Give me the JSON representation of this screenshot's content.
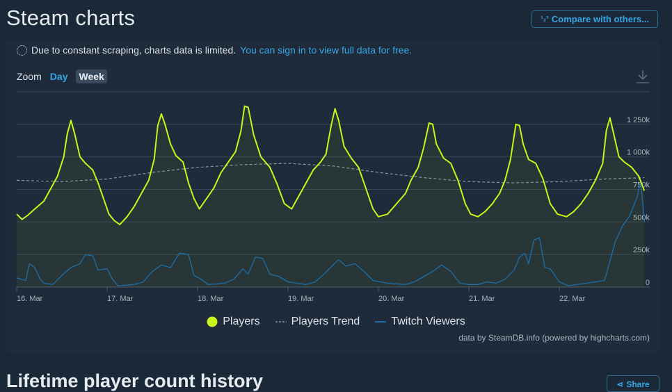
{
  "header": {
    "title": "Steam charts",
    "compare_label": "Compare with others..."
  },
  "notice": {
    "text": "Due to constant scraping, charts data is limited.",
    "link": "You can sign in to view full data for free."
  },
  "zoom": {
    "label": "Zoom",
    "options": [
      "Day",
      "Week"
    ],
    "selected": "Week"
  },
  "footer": {
    "credits": "data by SteamDB.info (powered by highcharts.com)",
    "next_title": "Lifetime player count history",
    "share_label": "Share"
  },
  "colors": {
    "players": "#c8f51c",
    "trend": "#8a96a3",
    "twitch": "#1c6fa8",
    "accent": "#35a6e5"
  },
  "chart_data": {
    "type": "line",
    "title": "",
    "x_tick_labels": [
      "16. Mar",
      "17. Mar",
      "18. Mar",
      "19. Mar",
      "20. Mar",
      "21. Mar",
      "22. Mar"
    ],
    "x_range_days": [
      0,
      7.0
    ],
    "y_tick_labels": [
      "0",
      "250k",
      "500k",
      "750k",
      "1 000k",
      "1 250k"
    ],
    "y_ticks": [
      0,
      250000,
      500000,
      750000,
      1000000,
      1250000
    ],
    "ylim": [
      0,
      1500000
    ],
    "grid": true,
    "legend_position": "bottom-center",
    "series": [
      {
        "name": "Players",
        "values": [
          [
            0,
            560000
          ],
          [
            0.06,
            520000
          ],
          [
            0.12,
            550000
          ],
          [
            0.2,
            600000
          ],
          [
            0.3,
            660000
          ],
          [
            0.38,
            760000
          ],
          [
            0.45,
            850000
          ],
          [
            0.52,
            1000000
          ],
          [
            0.56,
            1180000
          ],
          [
            0.6,
            1280000
          ],
          [
            0.64,
            1180000
          ],
          [
            0.7,
            1000000
          ],
          [
            0.76,
            950000
          ],
          [
            0.84,
            900000
          ],
          [
            0.9,
            800000
          ],
          [
            0.96,
            680000
          ],
          [
            1.02,
            560000
          ],
          [
            1.08,
            510000
          ],
          [
            1.14,
            480000
          ],
          [
            1.22,
            540000
          ],
          [
            1.3,
            620000
          ],
          [
            1.38,
            720000
          ],
          [
            1.46,
            820000
          ],
          [
            1.52,
            980000
          ],
          [
            1.56,
            1240000
          ],
          [
            1.6,
            1330000
          ],
          [
            1.64,
            1250000
          ],
          [
            1.7,
            1100000
          ],
          [
            1.76,
            1010000
          ],
          [
            1.84,
            960000
          ],
          [
            1.9,
            800000
          ],
          [
            1.96,
            680000
          ],
          [
            2.02,
            600000
          ],
          [
            2.1,
            680000
          ],
          [
            2.18,
            760000
          ],
          [
            2.26,
            880000
          ],
          [
            2.34,
            960000
          ],
          [
            2.42,
            1040000
          ],
          [
            2.48,
            1200000
          ],
          [
            2.52,
            1390000
          ],
          [
            2.56,
            1380000
          ],
          [
            2.62,
            1170000
          ],
          [
            2.7,
            1000000
          ],
          [
            2.8,
            920000
          ],
          [
            2.88,
            790000
          ],
          [
            2.96,
            640000
          ],
          [
            3.04,
            600000
          ],
          [
            3.12,
            700000
          ],
          [
            3.2,
            800000
          ],
          [
            3.28,
            900000
          ],
          [
            3.36,
            960000
          ],
          [
            3.42,
            1020000
          ],
          [
            3.48,
            1250000
          ],
          [
            3.52,
            1370000
          ],
          [
            3.56,
            1280000
          ],
          [
            3.62,
            1080000
          ],
          [
            3.7,
            990000
          ],
          [
            3.78,
            920000
          ],
          [
            3.86,
            760000
          ],
          [
            3.94,
            600000
          ],
          [
            4.0,
            540000
          ],
          [
            4.1,
            560000
          ],
          [
            4.2,
            640000
          ],
          [
            4.3,
            720000
          ],
          [
            4.36,
            820000
          ],
          [
            4.44,
            920000
          ],
          [
            4.5,
            1070000
          ],
          [
            4.56,
            1260000
          ],
          [
            4.6,
            1250000
          ],
          [
            4.64,
            1100000
          ],
          [
            4.72,
            990000
          ],
          [
            4.8,
            950000
          ],
          [
            4.88,
            820000
          ],
          [
            4.96,
            640000
          ],
          [
            5.02,
            560000
          ],
          [
            5.1,
            540000
          ],
          [
            5.18,
            580000
          ],
          [
            5.26,
            640000
          ],
          [
            5.34,
            720000
          ],
          [
            5.4,
            820000
          ],
          [
            5.46,
            980000
          ],
          [
            5.52,
            1250000
          ],
          [
            5.56,
            1240000
          ],
          [
            5.6,
            1100000
          ],
          [
            5.66,
            980000
          ],
          [
            5.74,
            950000
          ],
          [
            5.82,
            830000
          ],
          [
            5.9,
            640000
          ],
          [
            5.98,
            560000
          ],
          [
            6.08,
            540000
          ],
          [
            6.16,
            580000
          ],
          [
            6.24,
            640000
          ],
          [
            6.32,
            720000
          ],
          [
            6.4,
            820000
          ],
          [
            6.48,
            950000
          ],
          [
            6.52,
            1200000
          ],
          [
            6.56,
            1300000
          ],
          [
            6.6,
            1180000
          ],
          [
            6.66,
            1000000
          ],
          [
            6.72,
            960000
          ],
          [
            6.8,
            920000
          ],
          [
            6.88,
            850000
          ],
          [
            6.94,
            740000
          ]
        ]
      },
      {
        "name": "Players Trend",
        "values": [
          [
            0,
            820000
          ],
          [
            0.5,
            810000
          ],
          [
            1.0,
            830000
          ],
          [
            1.5,
            880000
          ],
          [
            2.0,
            920000
          ],
          [
            2.5,
            940000
          ],
          [
            3.0,
            950000
          ],
          [
            3.5,
            930000
          ],
          [
            4.0,
            880000
          ],
          [
            4.5,
            840000
          ],
          [
            5.0,
            810000
          ],
          [
            5.5,
            800000
          ],
          [
            6.0,
            810000
          ],
          [
            6.5,
            830000
          ],
          [
            6.94,
            840000
          ]
        ]
      },
      {
        "name": "Twitch Viewers",
        "values": [
          [
            0,
            70000
          ],
          [
            0.1,
            50000
          ],
          [
            0.14,
            180000
          ],
          [
            0.2,
            150000
          ],
          [
            0.26,
            60000
          ],
          [
            0.3,
            30000
          ],
          [
            0.4,
            20000
          ],
          [
            0.5,
            90000
          ],
          [
            0.6,
            150000
          ],
          [
            0.7,
            180000
          ],
          [
            0.76,
            250000
          ],
          [
            0.84,
            240000
          ],
          [
            0.9,
            130000
          ],
          [
            1.0,
            140000
          ],
          [
            1.06,
            60000
          ],
          [
            1.12,
            10000
          ],
          [
            1.3,
            20000
          ],
          [
            1.4,
            40000
          ],
          [
            1.5,
            120000
          ],
          [
            1.6,
            170000
          ],
          [
            1.7,
            150000
          ],
          [
            1.8,
            260000
          ],
          [
            1.9,
            250000
          ],
          [
            1.96,
            90000
          ],
          [
            2.04,
            60000
          ],
          [
            2.12,
            20000
          ],
          [
            2.3,
            30000
          ],
          [
            2.4,
            60000
          ],
          [
            2.5,
            140000
          ],
          [
            2.56,
            100000
          ],
          [
            2.64,
            230000
          ],
          [
            2.72,
            220000
          ],
          [
            2.8,
            100000
          ],
          [
            2.9,
            80000
          ],
          [
            3.0,
            40000
          ],
          [
            3.1,
            30000
          ],
          [
            3.2,
            20000
          ],
          [
            3.3,
            40000
          ],
          [
            3.4,
            100000
          ],
          [
            3.5,
            170000
          ],
          [
            3.56,
            210000
          ],
          [
            3.64,
            160000
          ],
          [
            3.74,
            180000
          ],
          [
            3.84,
            120000
          ],
          [
            3.94,
            50000
          ],
          [
            4.1,
            30000
          ],
          [
            4.3,
            20000
          ],
          [
            4.4,
            40000
          ],
          [
            4.5,
            80000
          ],
          [
            4.6,
            120000
          ],
          [
            4.7,
            170000
          ],
          [
            4.8,
            120000
          ],
          [
            4.9,
            30000
          ],
          [
            5.0,
            20000
          ],
          [
            5.1,
            20000
          ],
          [
            5.2,
            40000
          ],
          [
            5.3,
            30000
          ],
          [
            5.4,
            60000
          ],
          [
            5.5,
            130000
          ],
          [
            5.56,
            230000
          ],
          [
            5.62,
            260000
          ],
          [
            5.66,
            180000
          ],
          [
            5.72,
            360000
          ],
          [
            5.78,
            380000
          ],
          [
            5.84,
            150000
          ],
          [
            5.9,
            140000
          ],
          [
            6.0,
            40000
          ],
          [
            6.1,
            10000
          ],
          [
            6.3,
            30000
          ],
          [
            6.4,
            40000
          ],
          [
            6.5,
            50000
          ],
          [
            6.56,
            200000
          ],
          [
            6.62,
            350000
          ],
          [
            6.7,
            470000
          ],
          [
            6.78,
            550000
          ],
          [
            6.86,
            690000
          ],
          [
            6.9,
            820000
          ],
          [
            6.94,
            500000
          ]
        ]
      }
    ]
  }
}
